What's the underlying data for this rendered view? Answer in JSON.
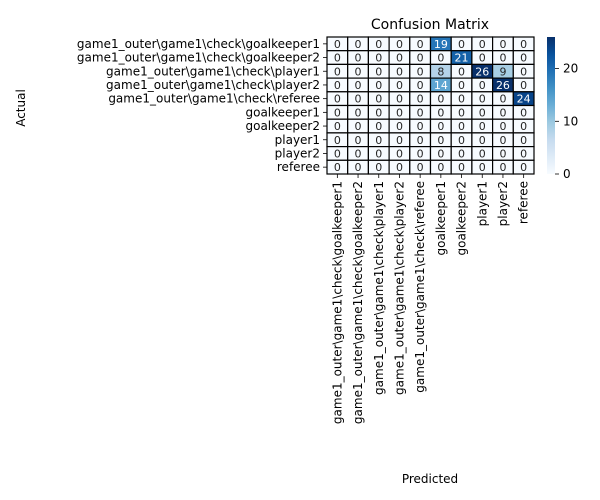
{
  "chart_data": {
    "type": "heatmap",
    "title": "Confusion Matrix",
    "xlabel": "Predicted",
    "ylabel": "Actual",
    "row_labels": [
      "game1_outer\\game1\\check\\goalkeeper1",
      "game1_outer\\game1\\check\\goalkeeper2",
      "game1_outer\\game1\\check\\player1",
      "game1_outer\\game1\\check\\player2",
      "game1_outer\\game1\\check\\referee",
      "goalkeeper1",
      "goalkeeper2",
      "player1",
      "player2",
      "referee"
    ],
    "col_labels": [
      "game1_outer\\game1\\check\\goalkeeper1",
      "game1_outer\\game1\\check\\goalkeeper2",
      "game1_outer\\game1\\check\\player1",
      "game1_outer\\game1\\check\\player2",
      "game1_outer\\game1\\check\\referee",
      "goalkeeper1",
      "goalkeeper2",
      "player1",
      "player2",
      "referee"
    ],
    "values": [
      [
        0,
        0,
        0,
        0,
        0,
        19,
        0,
        0,
        0,
        0
      ],
      [
        0,
        0,
        0,
        0,
        0,
        0,
        21,
        0,
        0,
        0
      ],
      [
        0,
        0,
        0,
        0,
        0,
        8,
        0,
        26,
        9,
        0
      ],
      [
        0,
        0,
        0,
        0,
        0,
        14,
        0,
        0,
        26,
        0
      ],
      [
        0,
        0,
        0,
        0,
        0,
        0,
        0,
        0,
        0,
        24
      ],
      [
        0,
        0,
        0,
        0,
        0,
        0,
        0,
        0,
        0,
        0
      ],
      [
        0,
        0,
        0,
        0,
        0,
        0,
        0,
        0,
        0,
        0
      ],
      [
        0,
        0,
        0,
        0,
        0,
        0,
        0,
        0,
        0,
        0
      ],
      [
        0,
        0,
        0,
        0,
        0,
        0,
        0,
        0,
        0,
        0
      ],
      [
        0,
        0,
        0,
        0,
        0,
        0,
        0,
        0,
        0,
        0
      ]
    ],
    "vmin": 0,
    "vmax": 26,
    "colorbar_ticks": [
      0,
      10,
      20
    ],
    "colormap": "Blues",
    "cell_border_color": "#000000"
  }
}
